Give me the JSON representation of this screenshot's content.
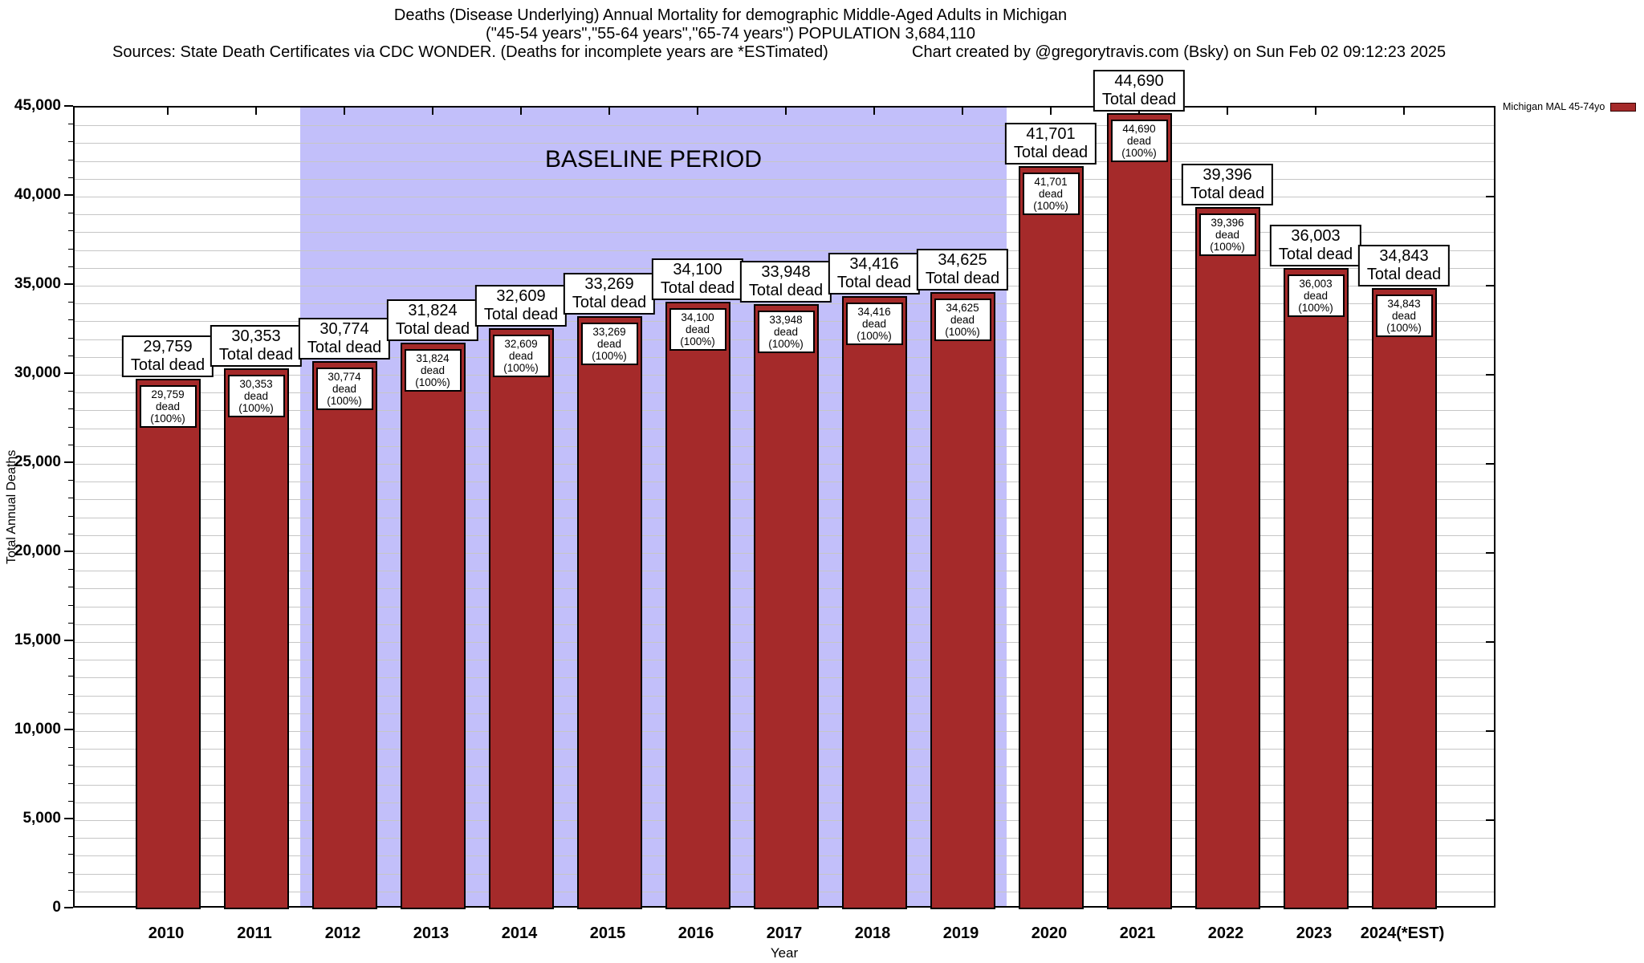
{
  "titles": {
    "line1": "Deaths (Disease Underlying) Annual Mortality for demographic Middle-Aged Adults in Michigan",
    "line2": "(\"45-54 years\",\"55-64 years\",\"65-74 years\") POPULATION 3,684,110",
    "line3_left": "Sources: State Death Certificates via CDC WONDER. (Deaths for incomplete years are *ESTimated)",
    "line3_right": "Chart created by @gregorytravis.com (Bsky) on Sun Feb 02 09:12:23 2025"
  },
  "legend": {
    "label": "Michigan MAL 45-74yo",
    "swatch_color": "#a52a2a",
    "position": "top-right"
  },
  "chart_data": {
    "type": "bar",
    "title": "Deaths (Disease Underlying) Annual Mortality for demographic Middle-Aged Adults in Michigan",
    "xlabel": "Year",
    "ylabel": "Total Annual Deaths",
    "ylim": [
      0,
      45000
    ],
    "y_major_step": 5000,
    "y_minor_step": 1000,
    "grid": true,
    "legend_position": "top-right",
    "y_tick_labels": [
      "0",
      "5,000",
      "10,000",
      "15,000",
      "20,000",
      "25,000",
      "30,000",
      "35,000",
      "40,000",
      "45,000"
    ],
    "categories": [
      "2010",
      "2011",
      "2012",
      "2013",
      "2014",
      "2015",
      "2016",
      "2017",
      "2018",
      "2019",
      "2020",
      "2021",
      "2022",
      "2023",
      "2024(*EST)"
    ],
    "series": [
      {
        "name": "Michigan MAL 45-74yo",
        "values": [
          29759,
          30353,
          30774,
          31824,
          32609,
          33269,
          34100,
          33948,
          34416,
          34625,
          41701,
          44690,
          39396,
          36003,
          34843
        ],
        "value_labels": [
          "29,759",
          "30,353",
          "30,774",
          "31,824",
          "32,609",
          "33,269",
          "34,100",
          "33,948",
          "34,416",
          "34,625",
          "41,701",
          "44,690",
          "39,396",
          "36,003",
          "34,843"
        ],
        "color": "#a52a2a"
      }
    ],
    "bar_top_label_suffix": "Total dead",
    "bar_inner_label_suffix": "dead (100%)",
    "annotation": {
      "text": "BASELINE PERIOD",
      "start_category": "2012",
      "end_category": "2019",
      "fill_color": "#c2bffa"
    }
  }
}
